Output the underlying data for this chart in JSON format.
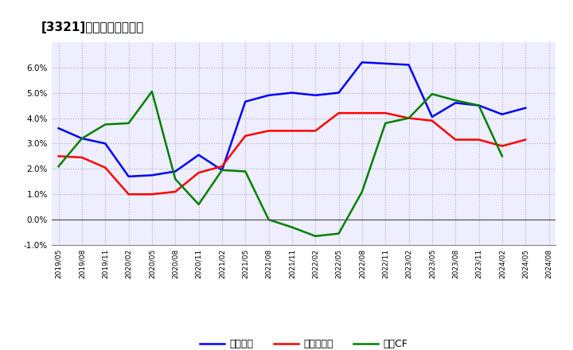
{
  "title": "[3321]　マージンの推移",
  "x_labels": [
    "2019/05",
    "2019/08",
    "2019/11",
    "2020/02",
    "2020/05",
    "2020/08",
    "2020/11",
    "2021/02",
    "2021/05",
    "2021/08",
    "2021/11",
    "2022/02",
    "2022/05",
    "2022/08",
    "2022/11",
    "2023/02",
    "2023/05",
    "2023/08",
    "2023/11",
    "2024/02",
    "2024/05",
    "2024/08"
  ],
  "blue_values": [
    3.6,
    3.2,
    3.0,
    1.7,
    1.75,
    1.9,
    2.55,
    1.95,
    4.65,
    4.9,
    5.0,
    4.9,
    5.0,
    6.2,
    6.15,
    6.1,
    4.05,
    4.6,
    4.5,
    4.15,
    4.4,
    null
  ],
  "red_values": [
    2.5,
    2.45,
    2.05,
    1.0,
    1.0,
    1.1,
    1.85,
    2.1,
    3.3,
    3.5,
    3.5,
    3.5,
    4.2,
    4.2,
    4.2,
    4.0,
    3.9,
    3.15,
    3.15,
    2.9,
    3.15,
    null
  ],
  "green_values": [
    2.1,
    3.2,
    3.75,
    3.8,
    5.05,
    1.6,
    0.6,
    1.95,
    1.9,
    0.0,
    -0.3,
    -0.65,
    -0.55,
    1.1,
    3.8,
    4.0,
    4.95,
    4.7,
    4.5,
    2.5,
    null,
    null
  ],
  "blue_color": "#0000FF",
  "red_color": "#FF0000",
  "green_color": "#008000",
  "ylim": [
    -1.0,
    7.0
  ],
  "yticks": [
    -1.0,
    0.0,
    1.0,
    2.0,
    3.0,
    4.0,
    5.0,
    6.0
  ],
  "legend_labels": [
    "経常利益",
    "当期純利益",
    "営業CF"
  ],
  "bg_color": "#FFFFFF",
  "plot_bg_color": "#EEEEFF",
  "grid_color": "#AAAACC"
}
